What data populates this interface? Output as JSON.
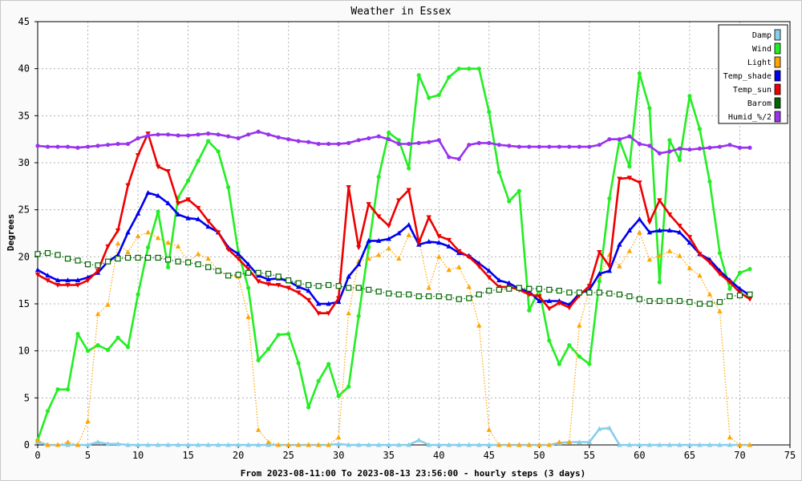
{
  "chart_data": {
    "type": "line",
    "title": "Weather in Essex",
    "xlabel": "From 2023-08-11:00 To 2023-08-13 23:56:00 - hourly steps (3 days)",
    "ylabel": "Degrees",
    "xlim": [
      0,
      75
    ],
    "ylim": [
      0,
      45
    ],
    "xticks": [
      "0",
      "5",
      "10",
      "15",
      "20",
      "25",
      "30",
      "35",
      "40",
      "45",
      "50",
      "55",
      "60",
      "65",
      "70",
      "75"
    ],
    "yticks": [
      "0",
      "5",
      "10",
      "15",
      "20",
      "25",
      "30",
      "35",
      "40",
      "45"
    ],
    "grid": true,
    "legend_position": "top-right",
    "x": [
      0,
      1,
      2,
      3,
      4,
      5,
      6,
      7,
      8,
      9,
      10,
      11,
      12,
      13,
      14,
      15,
      16,
      17,
      18,
      19,
      20,
      21,
      22,
      23,
      24,
      25,
      26,
      27,
      28,
      29,
      30,
      31,
      32,
      33,
      34,
      35,
      36,
      37,
      38,
      39,
      40,
      41,
      42,
      43,
      44,
      45,
      46,
      47,
      48,
      49,
      50,
      51,
      52,
      53,
      54,
      55,
      56,
      57,
      58,
      59,
      60,
      61,
      62,
      63,
      64,
      65,
      66,
      67,
      68,
      69,
      70,
      71
    ],
    "series": [
      {
        "name": "Damp",
        "color": "#87ceeb",
        "style": "solid",
        "marker": "triangle",
        "values": [
          0.3,
          0,
          0,
          0,
          0,
          0,
          0.3,
          0.1,
          0.1,
          0,
          0,
          0,
          0,
          0,
          0,
          0,
          0,
          0,
          0,
          0,
          0,
          0,
          0,
          0,
          0,
          0,
          0,
          0,
          0,
          0,
          0.1,
          0,
          0,
          0,
          0,
          0,
          0,
          0,
          0.5,
          0,
          0,
          0,
          0,
          0,
          0,
          0,
          0,
          0,
          0,
          0,
          0,
          0,
          0.2,
          0.3,
          0.3,
          0.3,
          1.7,
          1.8,
          0,
          0,
          0,
          0,
          0,
          0,
          0,
          0,
          0,
          0,
          0,
          0,
          0,
          0
        ]
      },
      {
        "name": "Wind",
        "color": "#22ee22",
        "style": "solid",
        "marker": "circle",
        "values": [
          0.5,
          3.6,
          5.9,
          5.9,
          11.8,
          10.0,
          10.6,
          10.1,
          11.4,
          10.4,
          16.0,
          21.0,
          24.8,
          18.9,
          26.3,
          28.1,
          30.2,
          32.3,
          31.2,
          27.4,
          20.5,
          16.7,
          9.0,
          10.2,
          11.7,
          11.8,
          8.7,
          4.0,
          6.8,
          8.6,
          5.2,
          6.2,
          13.7,
          21.0,
          28.5,
          33.2,
          32.4,
          29.4,
          39.3,
          36.9,
          37.2,
          39.1,
          40.0,
          40.0,
          40.0,
          35.4,
          29.0,
          25.9,
          27.0,
          14.3,
          16.5,
          11.1,
          8.6,
          10.6,
          9.4,
          8.6,
          17.4,
          26.2,
          32.4,
          29.6,
          39.5,
          35.8,
          17.3,
          32.4,
          30.3,
          37.1,
          33.6,
          28.0,
          20.4,
          16.6,
          18.3,
          18.7
        ]
      },
      {
        "name": "Light",
        "color": "#ffa500",
        "style": "dotted",
        "marker": "triangle",
        "values": [
          0.5,
          0,
          0,
          0.3,
          0,
          2.5,
          13.9,
          14.9,
          21.4,
          20.5,
          22.2,
          22.6,
          22.0,
          21.5,
          21.1,
          19.5,
          20.3,
          19.8,
          18.6,
          18.0,
          17.9,
          13.6,
          1.6,
          0.3,
          0,
          0,
          0,
          0,
          0,
          0,
          0.8,
          14.0,
          19.5,
          19.8,
          20.2,
          20.9,
          19.8,
          22.3,
          21.8,
          16.7,
          20.0,
          18.6,
          18.9,
          16.8,
          12.7,
          1.6,
          0,
          0,
          0,
          0,
          0,
          0,
          0.3,
          0.3,
          12.7,
          16.5,
          18.0,
          20.2,
          19.0,
          20.6,
          22.6,
          19.7,
          20.1,
          20.6,
          20.1,
          18.8,
          18.0,
          16.0,
          14.2,
          0.8,
          0,
          0
        ]
      },
      {
        "name": "Temp_shade",
        "color": "#0000ee",
        "style": "solid",
        "marker": "triangle",
        "values": [
          18.6,
          18.0,
          17.5,
          17.5,
          17.5,
          17.8,
          18.3,
          19.5,
          20.2,
          22.6,
          24.6,
          26.8,
          26.5,
          25.7,
          24.5,
          24.1,
          24.0,
          23.2,
          22.6,
          21.0,
          20.3,
          19.2,
          18.0,
          17.6,
          17.7,
          17.4,
          16.8,
          16.4,
          15.0,
          15.0,
          15.2,
          17.9,
          19.2,
          21.7,
          21.7,
          21.9,
          22.5,
          23.4,
          21.3,
          21.6,
          21.5,
          21.1,
          20.4,
          20.1,
          19.3,
          18.5,
          17.5,
          17.2,
          16.6,
          16.3,
          15.3,
          15.3,
          15.3,
          14.9,
          16.1,
          16.5,
          18.2,
          18.5,
          21.3,
          22.8,
          24.0,
          22.6,
          22.8,
          22.8,
          22.6,
          21.5,
          20.3,
          19.7,
          18.5,
          17.5,
          16.6,
          15.9
        ]
      },
      {
        "name": "Temp_sun",
        "color": "#ee0000",
        "style": "solid",
        "marker": "invtriangle",
        "values": [
          18.1,
          17.5,
          17.0,
          17.0,
          17.0,
          17.5,
          18.5,
          21.1,
          22.8,
          27.6,
          30.8,
          33.1,
          29.6,
          29.1,
          25.7,
          26.1,
          25.2,
          23.8,
          22.6,
          20.8,
          19.8,
          18.7,
          17.4,
          17.1,
          17.0,
          16.7,
          16.2,
          15.4,
          14.0,
          14.0,
          15.6,
          27.4,
          21.0,
          25.6,
          24.3,
          23.3,
          26.0,
          27.1,
          21.5,
          24.2,
          22.2,
          21.8,
          20.6,
          20.0,
          19.0,
          17.8,
          16.8,
          16.8,
          16.5,
          16.0,
          15.8,
          14.5,
          15.1,
          14.6,
          15.9,
          16.9,
          20.5,
          19.0,
          28.3,
          28.4,
          27.9,
          23.7,
          26.0,
          24.5,
          23.3,
          22.1,
          20.3,
          19.4,
          18.2,
          17.3,
          16.2,
          15.5
        ]
      },
      {
        "name": "Barom",
        "color": "#006600",
        "style": "dotted",
        "marker": "square",
        "values": [
          20.3,
          20.4,
          20.2,
          19.8,
          19.6,
          19.2,
          19.1,
          19.5,
          19.8,
          19.9,
          19.9,
          19.9,
          19.9,
          19.7,
          19.5,
          19.4,
          19.2,
          18.9,
          18.5,
          18.0,
          18.1,
          18.3,
          18.3,
          18.2,
          17.9,
          17.5,
          17.2,
          17.0,
          16.9,
          17.0,
          16.9,
          16.7,
          16.7,
          16.5,
          16.3,
          16.1,
          16.0,
          16.0,
          15.8,
          15.8,
          15.8,
          15.7,
          15.5,
          15.6,
          16.0,
          16.4,
          16.5,
          16.6,
          16.7,
          16.6,
          16.6,
          16.5,
          16.4,
          16.2,
          16.2,
          16.2,
          16.2,
          16.1,
          16.0,
          15.8,
          15.5,
          15.3,
          15.3,
          15.3,
          15.3,
          15.2,
          15.0,
          15.0,
          15.2,
          15.8,
          15.9,
          16.0
        ]
      },
      {
        "name": "Humid_%/2",
        "color": "#9933ee",
        "style": "solid",
        "marker": "circle",
        "values": [
          31.8,
          31.7,
          31.7,
          31.7,
          31.6,
          31.7,
          31.8,
          31.9,
          32.0,
          32.0,
          32.6,
          32.9,
          33.0,
          33.0,
          32.9,
          32.9,
          33.0,
          33.1,
          33.0,
          32.8,
          32.6,
          33.0,
          33.3,
          33.0,
          32.7,
          32.5,
          32.3,
          32.2,
          32.0,
          32.0,
          32.0,
          32.1,
          32.4,
          32.6,
          32.8,
          32.5,
          32.0,
          32.0,
          32.1,
          32.2,
          32.4,
          30.6,
          30.4,
          31.9,
          32.1,
          32.1,
          31.9,
          31.8,
          31.7,
          31.7,
          31.7,
          31.7,
          31.7,
          31.7,
          31.7,
          31.7,
          31.9,
          32.5,
          32.5,
          32.8,
          32.0,
          31.8,
          31.0,
          31.2,
          31.5,
          31.4,
          31.5,
          31.6,
          31.7,
          31.9,
          31.6,
          31.6
        ]
      }
    ]
  }
}
